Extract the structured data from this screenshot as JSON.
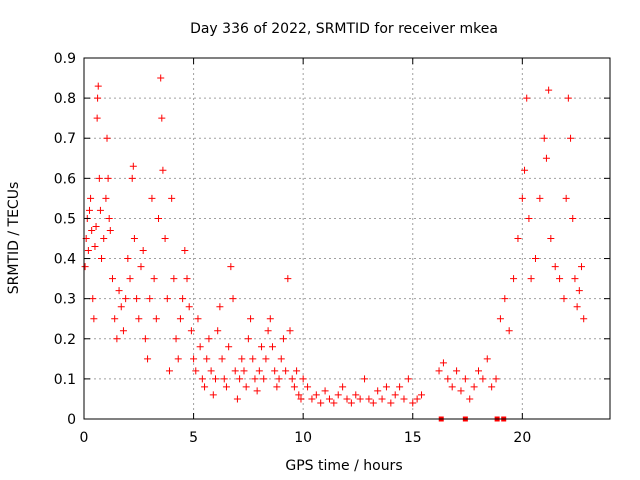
{
  "chart_data": {
    "type": "scatter",
    "title": "Day 336 of 2022, SRMTID for receiver mkea",
    "xlabel": "GPS time / hours",
    "ylabel": "SRMTID / TECUs",
    "xlim": [
      0,
      24
    ],
    "ylim": [
      0,
      0.9
    ],
    "x_ticks": [
      0,
      5,
      10,
      15,
      20
    ],
    "x_tick_labels": [
      "0",
      "5",
      "10",
      "15",
      "20"
    ],
    "y_ticks": [
      0,
      0.1,
      0.2,
      0.3,
      0.4,
      0.5,
      0.6,
      0.7,
      0.8,
      0.9
    ],
    "y_tick_labels": [
      "0",
      "0.1",
      "0.2",
      "0.3",
      "0.4",
      "0.5",
      "0.6",
      "0.7",
      "0.8",
      "0.9"
    ],
    "grid": true,
    "marker": "+",
    "color": "#ff0000",
    "series": [
      {
        "name": "SRMTID",
        "points": [
          [
            0.05,
            0.38
          ],
          [
            0.1,
            0.45
          ],
          [
            0.15,
            0.5
          ],
          [
            0.2,
            0.42
          ],
          [
            0.25,
            0.52
          ],
          [
            0.3,
            0.55
          ],
          [
            0.35,
            0.47
          ],
          [
            0.4,
            0.3
          ],
          [
            0.45,
            0.25
          ],
          [
            0.5,
            0.43
          ],
          [
            0.55,
            0.48
          ],
          [
            0.6,
            0.75
          ],
          [
            0.62,
            0.8
          ],
          [
            0.65,
            0.83
          ],
          [
            0.7,
            0.6
          ],
          [
            0.75,
            0.52
          ],
          [
            0.8,
            0.4
          ],
          [
            0.9,
            0.45
          ],
          [
            1.0,
            0.55
          ],
          [
            1.05,
            0.7
          ],
          [
            1.1,
            0.6
          ],
          [
            1.15,
            0.5
          ],
          [
            1.2,
            0.47
          ],
          [
            1.3,
            0.35
          ],
          [
            1.4,
            0.25
          ],
          [
            1.5,
            0.2
          ],
          [
            1.6,
            0.32
          ],
          [
            1.7,
            0.28
          ],
          [
            1.8,
            0.22
          ],
          [
            1.9,
            0.3
          ],
          [
            2.0,
            0.4
          ],
          [
            2.1,
            0.35
          ],
          [
            2.2,
            0.6
          ],
          [
            2.25,
            0.63
          ],
          [
            2.3,
            0.45
          ],
          [
            2.4,
            0.3
          ],
          [
            2.5,
            0.25
          ],
          [
            2.6,
            0.38
          ],
          [
            2.7,
            0.42
          ],
          [
            2.8,
            0.2
          ],
          [
            2.9,
            0.15
          ],
          [
            3.0,
            0.3
          ],
          [
            3.1,
            0.55
          ],
          [
            3.2,
            0.35
          ],
          [
            3.3,
            0.25
          ],
          [
            3.4,
            0.5
          ],
          [
            3.5,
            0.85
          ],
          [
            3.55,
            0.75
          ],
          [
            3.6,
            0.62
          ],
          [
            3.7,
            0.45
          ],
          [
            3.8,
            0.3
          ],
          [
            3.9,
            0.12
          ],
          [
            4.0,
            0.55
          ],
          [
            4.1,
            0.35
          ],
          [
            4.2,
            0.2
          ],
          [
            4.3,
            0.15
          ],
          [
            4.4,
            0.25
          ],
          [
            4.5,
            0.3
          ],
          [
            4.6,
            0.42
          ],
          [
            4.7,
            0.35
          ],
          [
            4.8,
            0.28
          ],
          [
            4.9,
            0.22
          ],
          [
            5.0,
            0.15
          ],
          [
            5.1,
            0.12
          ],
          [
            5.2,
            0.25
          ],
          [
            5.3,
            0.18
          ],
          [
            5.4,
            0.1
          ],
          [
            5.5,
            0.08
          ],
          [
            5.6,
            0.15
          ],
          [
            5.7,
            0.2
          ],
          [
            5.8,
            0.12
          ],
          [
            5.9,
            0.06
          ],
          [
            6.0,
            0.1
          ],
          [
            6.1,
            0.22
          ],
          [
            6.2,
            0.28
          ],
          [
            6.3,
            0.15
          ],
          [
            6.4,
            0.1
          ],
          [
            6.5,
            0.08
          ],
          [
            6.6,
            0.18
          ],
          [
            6.7,
            0.38
          ],
          [
            6.8,
            0.3
          ],
          [
            6.9,
            0.12
          ],
          [
            7.0,
            0.05
          ],
          [
            7.1,
            0.1
          ],
          [
            7.2,
            0.15
          ],
          [
            7.3,
            0.12
          ],
          [
            7.4,
            0.08
          ],
          [
            7.5,
            0.2
          ],
          [
            7.6,
            0.25
          ],
          [
            7.7,
            0.15
          ],
          [
            7.8,
            0.1
          ],
          [
            7.9,
            0.07
          ],
          [
            8.0,
            0.12
          ],
          [
            8.1,
            0.18
          ],
          [
            8.2,
            0.1
          ],
          [
            8.3,
            0.15
          ],
          [
            8.4,
            0.22
          ],
          [
            8.5,
            0.25
          ],
          [
            8.6,
            0.18
          ],
          [
            8.7,
            0.12
          ],
          [
            8.8,
            0.08
          ],
          [
            8.9,
            0.1
          ],
          [
            9.0,
            0.15
          ],
          [
            9.1,
            0.2
          ],
          [
            9.2,
            0.12
          ],
          [
            9.3,
            0.35
          ],
          [
            9.4,
            0.22
          ],
          [
            9.5,
            0.1
          ],
          [
            9.6,
            0.08
          ],
          [
            9.7,
            0.12
          ],
          [
            9.8,
            0.06
          ],
          [
            9.9,
            0.05
          ],
          [
            10.0,
            0.1
          ],
          [
            10.2,
            0.08
          ],
          [
            10.4,
            0.05
          ],
          [
            10.6,
            0.06
          ],
          [
            10.8,
            0.04
          ],
          [
            11.0,
            0.07
          ],
          [
            11.2,
            0.05
          ],
          [
            11.4,
            0.04
          ],
          [
            11.6,
            0.06
          ],
          [
            11.8,
            0.08
          ],
          [
            12.0,
            0.05
          ],
          [
            12.2,
            0.04
          ],
          [
            12.4,
            0.06
          ],
          [
            12.6,
            0.05
          ],
          [
            12.8,
            0.1
          ],
          [
            13.0,
            0.05
          ],
          [
            13.2,
            0.04
          ],
          [
            13.4,
            0.07
          ],
          [
            13.6,
            0.05
          ],
          [
            13.8,
            0.08
          ],
          [
            14.0,
            0.04
          ],
          [
            14.2,
            0.06
          ],
          [
            14.4,
            0.08
          ],
          [
            14.6,
            0.05
          ],
          [
            14.8,
            0.1
          ],
          [
            15.0,
            0.04
          ],
          [
            15.2,
            0.05
          ],
          [
            15.4,
            0.06
          ],
          [
            16.2,
            0.12
          ],
          [
            16.4,
            0.14
          ],
          [
            16.6,
            0.1
          ],
          [
            16.8,
            0.08
          ],
          [
            17.0,
            0.12
          ],
          [
            17.2,
            0.07
          ],
          [
            17.4,
            0.1
          ],
          [
            17.6,
            0.05
          ],
          [
            17.8,
            0.08
          ],
          [
            18.0,
            0.12
          ],
          [
            18.2,
            0.1
          ],
          [
            18.4,
            0.15
          ],
          [
            18.6,
            0.08
          ],
          [
            18.8,
            0.1
          ],
          [
            19.0,
            0.25
          ],
          [
            19.2,
            0.3
          ],
          [
            19.4,
            0.22
          ],
          [
            19.6,
            0.35
          ],
          [
            19.8,
            0.45
          ],
          [
            20.0,
            0.55
          ],
          [
            20.1,
            0.62
          ],
          [
            20.2,
            0.8
          ],
          [
            20.3,
            0.5
          ],
          [
            20.4,
            0.35
          ],
          [
            20.6,
            0.4
          ],
          [
            20.8,
            0.55
          ],
          [
            21.0,
            0.7
          ],
          [
            21.1,
            0.65
          ],
          [
            21.2,
            0.82
          ],
          [
            21.3,
            0.45
          ],
          [
            21.5,
            0.38
          ],
          [
            21.7,
            0.35
          ],
          [
            21.9,
            0.3
          ],
          [
            22.0,
            0.55
          ],
          [
            22.1,
            0.8
          ],
          [
            22.2,
            0.7
          ],
          [
            22.3,
            0.5
          ],
          [
            22.4,
            0.35
          ],
          [
            22.5,
            0.28
          ],
          [
            22.6,
            0.32
          ],
          [
            22.7,
            0.38
          ],
          [
            22.8,
            0.25
          ]
        ]
      },
      {
        "name": "zero-level markers",
        "marker": "square",
        "points": [
          [
            16.3,
            0.0
          ],
          [
            17.4,
            0.0
          ],
          [
            18.85,
            0.0
          ],
          [
            19.15,
            0.0
          ]
        ]
      }
    ]
  }
}
